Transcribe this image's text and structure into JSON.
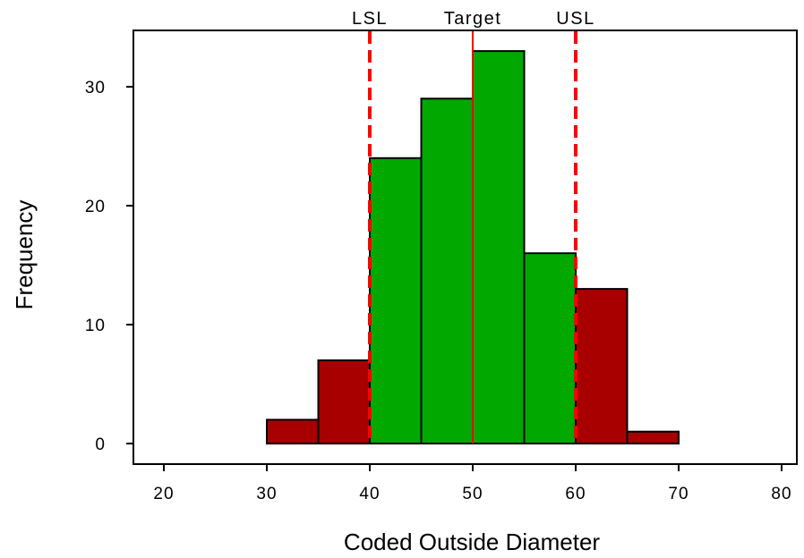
{
  "chart_data": {
    "type": "bar",
    "xlabel": "Coded Outside Diameter",
    "ylabel": "Frequency",
    "xlim": [
      20,
      80
    ],
    "ylim": [
      0,
      35
    ],
    "x_ticks": [
      20,
      30,
      40,
      50,
      60,
      70,
      80
    ],
    "y_ticks": [
      0,
      10,
      20,
      30
    ],
    "bins": [
      {
        "start": 20,
        "end": 25,
        "count": 0
      },
      {
        "start": 25,
        "end": 30,
        "count": 0
      },
      {
        "start": 30,
        "end": 35,
        "count": 2
      },
      {
        "start": 35,
        "end": 40,
        "count": 7
      },
      {
        "start": 40,
        "end": 45,
        "count": 24
      },
      {
        "start": 45,
        "end": 50,
        "count": 29
      },
      {
        "start": 50,
        "end": 55,
        "count": 33
      },
      {
        "start": 55,
        "end": 60,
        "count": 16
      },
      {
        "start": 60,
        "end": 65,
        "count": 13
      },
      {
        "start": 65,
        "end": 70,
        "count": 1
      },
      {
        "start": 70,
        "end": 75,
        "count": 0
      },
      {
        "start": 75,
        "end": 80,
        "count": 0
      }
    ],
    "reference_lines": [
      {
        "label": "LSL",
        "x": 40,
        "style": "dashed"
      },
      {
        "label": "Target",
        "x": 50,
        "style": "solid"
      },
      {
        "label": "USL",
        "x": 60,
        "style": "dashed"
      }
    ],
    "colors": {
      "in_spec": "#00a800",
      "out_of_spec": "#a80000",
      "reference_line": "#ff0000",
      "outline": "#000000"
    },
    "grid": false
  }
}
